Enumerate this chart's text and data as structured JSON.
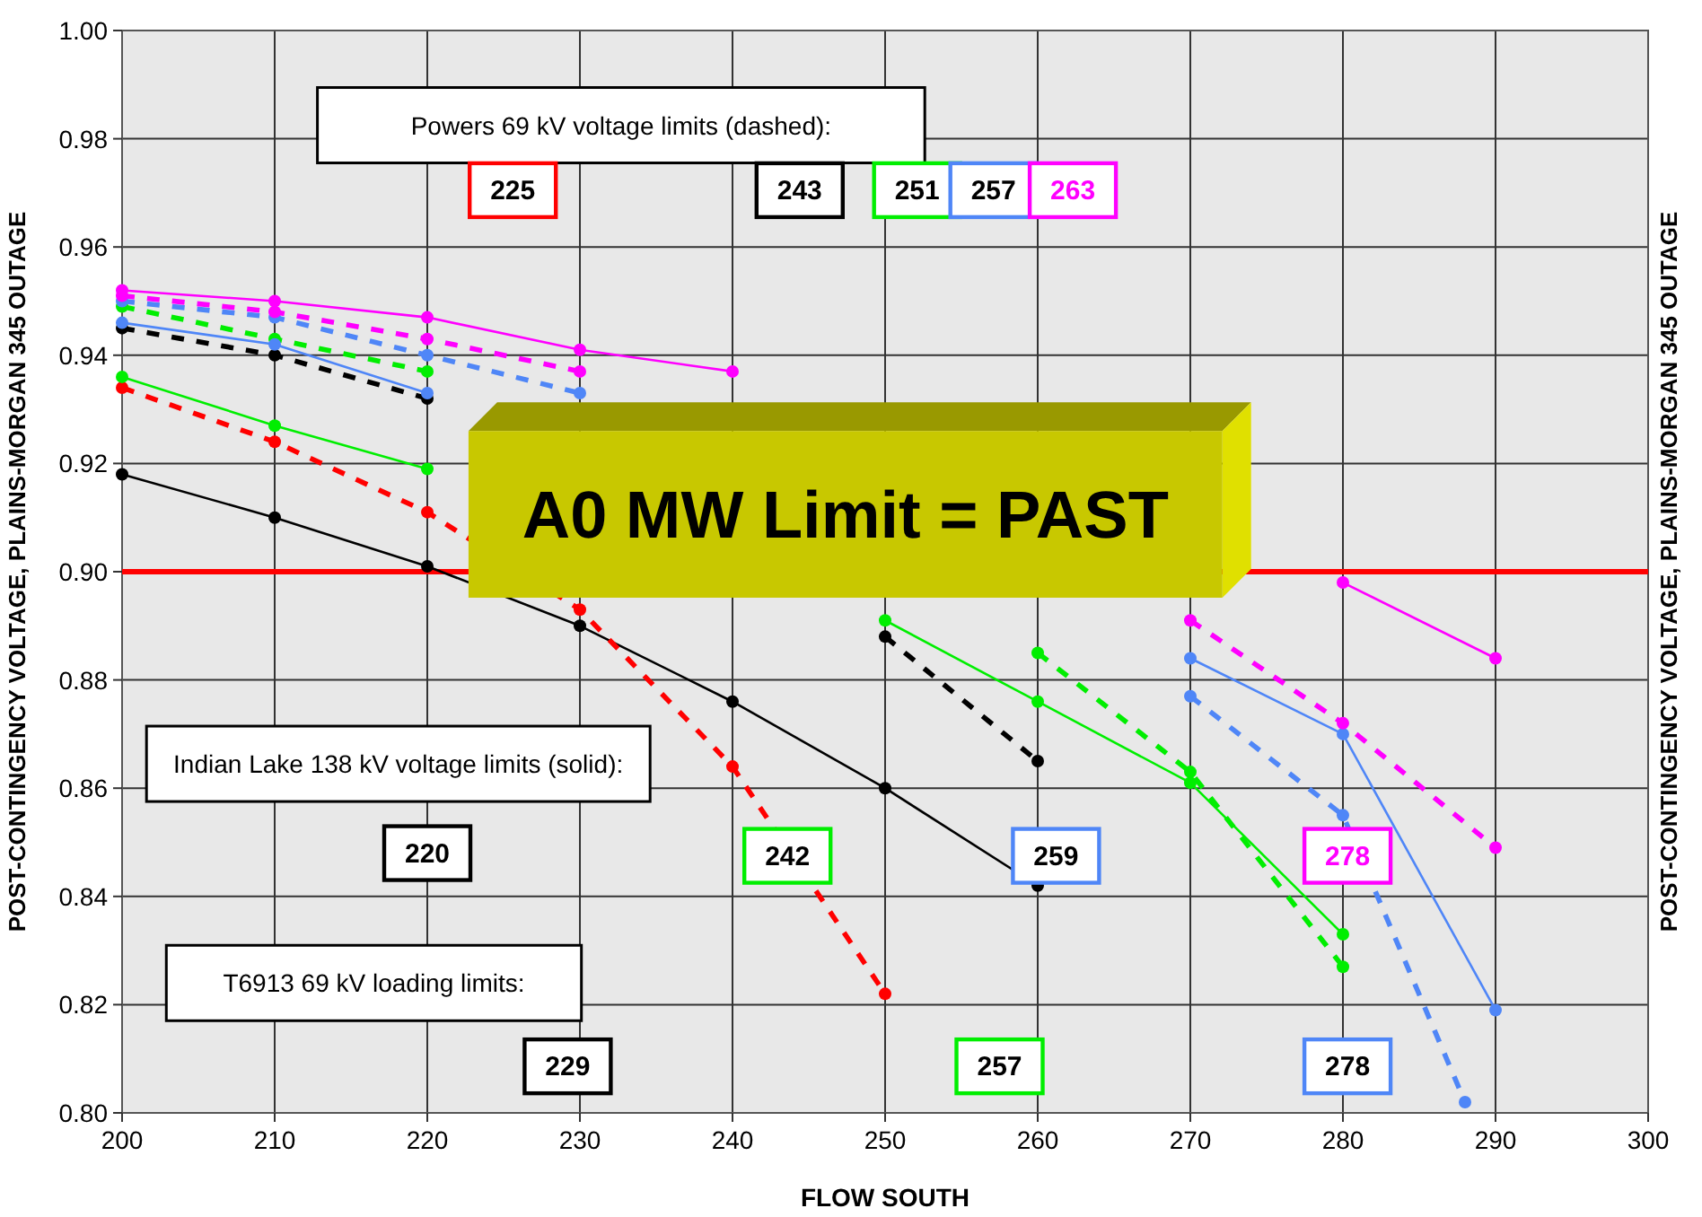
{
  "chart_data": {
    "type": "line",
    "xlabel": "FLOW SOUTH",
    "ylabel": "POST-CONTINGENCY VOLTAGE, PLAINS-MORGAN 345 OUTAGE",
    "y2label": "POST-CONTINGENCY VOLTAGE, PLAINS-MORGAN 345 OUTAGE",
    "x": [
      200,
      210,
      220,
      230,
      240,
      250,
      260,
      270,
      280,
      290
    ],
    "series": [
      {
        "color": "#000000",
        "line_style": "solid",
        "values": [
          0.918,
          0.91,
          0.901,
          0.89,
          0.876,
          0.86,
          0.842,
          null,
          null,
          null
        ]
      },
      {
        "color": "#000000",
        "line_style": "dashed",
        "values": [
          0.945,
          0.94,
          0.932,
          null,
          null,
          0.888,
          0.865,
          null,
          null,
          null
        ]
      },
      {
        "color": "#ff0000",
        "line_style": "dashed",
        "values": [
          0.934,
          0.924,
          0.911,
          0.893,
          0.864,
          0.822,
          null,
          null,
          null,
          null
        ]
      },
      {
        "color": "#00ee00",
        "line_style": "solid",
        "values": [
          0.936,
          0.927,
          0.919,
          null,
          null,
          0.891,
          0.876,
          0.861,
          0.833,
          null
        ]
      },
      {
        "color": "#00ee00",
        "line_style": "dashed",
        "values": [
          0.949,
          0.943,
          0.937,
          null,
          null,
          null,
          0.885,
          0.863,
          0.827,
          null
        ]
      },
      {
        "color": "#4f86f7",
        "line_style": "solid",
        "values": [
          0.946,
          0.942,
          0.933,
          null,
          null,
          null,
          null,
          0.884,
          0.87,
          0.819
        ]
      },
      {
        "color": "#4f86f7",
        "line_style": "dashed",
        "x": [
          200,
          210,
          220,
          230,
          240,
          250,
          260,
          270,
          280,
          288
        ],
        "values": [
          0.95,
          0.947,
          0.94,
          0.933,
          null,
          null,
          null,
          0.877,
          0.855,
          0.802
        ]
      },
      {
        "color": "#ff00ff",
        "line_style": "solid",
        "values": [
          0.952,
          0.95,
          0.947,
          0.941,
          0.937,
          null,
          null,
          null,
          0.898,
          0.884
        ]
      },
      {
        "color": "#ff00ff",
        "line_style": "dashed",
        "values": [
          0.951,
          0.948,
          0.943,
          0.937,
          null,
          null,
          null,
          0.891,
          0.872,
          0.849
        ]
      }
    ],
    "xlim": [
      200,
      300
    ],
    "xticks": [
      200,
      210,
      220,
      230,
      240,
      250,
      260,
      270,
      280,
      290,
      300
    ],
    "ylim": [
      0.8,
      1.0
    ],
    "yticks": [
      {
        "value": 0.8,
        "label": "0.80"
      },
      {
        "value": 0.82,
        "label": "0.82"
      },
      {
        "value": 0.84,
        "label": "0.84"
      },
      {
        "value": 0.86,
        "label": "0.86"
      },
      {
        "value": 0.88,
        "label": "0.88"
      },
      {
        "value": 0.9,
        "label": "0.90"
      },
      {
        "value": 0.92,
        "label": "0.92"
      },
      {
        "value": 0.94,
        "label": "0.94"
      },
      {
        "value": 0.96,
        "label": "0.96"
      },
      {
        "value": 0.98,
        "label": "0.98"
      },
      {
        "value": 1.0,
        "label": "1.00"
      }
    ],
    "grid": true,
    "marker": "circle",
    "ref_lines": [
      {
        "axis": "y",
        "value": 0.9,
        "label": null,
        "color": "#ff0000"
      }
    ],
    "annotations": [
      "Powers 69 kV voltage limits (dashed):",
      "225",
      "243",
      "251",
      "257",
      "263",
      "Indian Lake 138 kV voltage limits (solid):",
      "220",
      "242",
      "259",
      "278",
      "T6913 69 kV loading limits:",
      "229",
      "257",
      "278",
      "A0 MW Limit = PAST"
    ]
  }
}
